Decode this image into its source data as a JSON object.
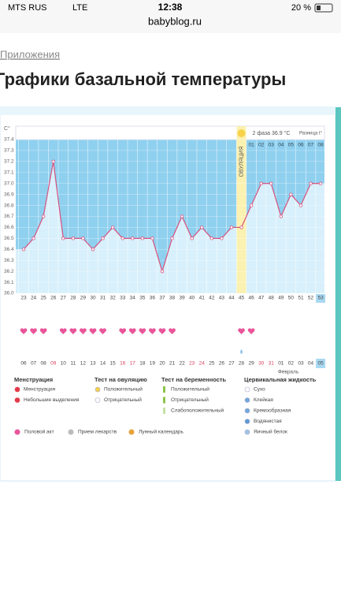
{
  "status_bar": {
    "carrier": "MTS RUS",
    "network": "LTE",
    "time": "12:38",
    "battery": "20 %"
  },
  "url": "babyblog.ru",
  "breadcrumb": "Приложения",
  "title": "Графики базальной температуры",
  "chart_data": {
    "type": "line",
    "y_unit": "C°",
    "color": "#d9517e",
    "ylim": [
      36.0,
      37.4
    ],
    "yticks": [
      {
        "value": 36,
        "label": "36.0"
      },
      36.1,
      36.2,
      36.3,
      36.4,
      36.5,
      36.6,
      36.7,
      36.8,
      36.9,
      {
        "value": 37,
        "label": "37.0"
      },
      37.1,
      37.2,
      37.3,
      37.4
    ],
    "categories": [
      "23",
      "24",
      "25",
      "26",
      "27",
      "28",
      "29",
      "30",
      "31",
      "32",
      "33",
      "34",
      "35",
      "36",
      "37",
      "38",
      "39",
      "40",
      "41",
      "42",
      "43",
      "44",
      "45",
      "46",
      "47",
      "48",
      "49",
      "50",
      "51",
      "52",
      "53"
    ],
    "values": [
      36.4,
      36.5,
      36.7,
      37.2,
      36.5,
      36.5,
      36.5,
      36.4,
      36.5,
      36.6,
      36.5,
      36.5,
      36.5,
      36.5,
      36.2,
      36.5,
      36.7,
      36.5,
      36.6,
      36.5,
      36.5,
      36.6,
      36.6,
      36.8,
      37.0,
      37.0,
      36.7,
      36.9,
      36.8,
      37.0,
      37.0
    ],
    "dates": [
      "06",
      "07",
      "08",
      "09",
      "10",
      "11",
      "12",
      "13",
      "14",
      "15",
      "16",
      "17",
      "18",
      "19",
      "20",
      "21",
      "22",
      "23",
      "24",
      "25",
      "26",
      "27",
      "28",
      "29",
      "30",
      "31",
      "01",
      "02",
      "03",
      "04",
      "05"
    ],
    "weekend": [
      false,
      false,
      false,
      true,
      false,
      false,
      false,
      false,
      false,
      false,
      true,
      true,
      false,
      false,
      false,
      false,
      false,
      true,
      true,
      false,
      false,
      false,
      false,
      false,
      true,
      true,
      false,
      false,
      false,
      false,
      false
    ],
    "hearts": [
      true,
      true,
      true,
      false,
      true,
      true,
      true,
      true,
      true,
      false,
      true,
      true,
      true,
      true,
      true,
      true,
      false,
      false,
      false,
      false,
      false,
      false,
      true,
      true,
      false,
      false,
      false,
      false,
      false,
      false,
      false
    ],
    "month_label": "Февраль",
    "ovulation_label": "ОВУЛЯЦИЯ",
    "phase_label": "2 фаза 36.9 °C",
    "difference_label": "Разница t°",
    "phase_days": [
      "01",
      "02",
      "03",
      "04",
      "05",
      "06",
      "07",
      "08"
    ]
  },
  "legend": {
    "groups": [
      {
        "title": "Менструация",
        "items": [
          "Менструация",
          "Небольшие выделения"
        ]
      },
      {
        "title": "Тест на овуляцию",
        "items": [
          "Положительный",
          "Отрицательный"
        ]
      },
      {
        "title": "Тест на беременность",
        "items": [
          "Положительный",
          "Отрицательный",
          "Слабоположительный"
        ]
      },
      {
        "title": "Цервикальная жидкость",
        "items": [
          "Сухо",
          "Клейкая",
          "Кремообразная",
          "Водянистая",
          "Яичный белок"
        ]
      }
    ],
    "bottom": [
      "Половой акт",
      "Прием лекарств",
      "Лунный календарь"
    ]
  }
}
